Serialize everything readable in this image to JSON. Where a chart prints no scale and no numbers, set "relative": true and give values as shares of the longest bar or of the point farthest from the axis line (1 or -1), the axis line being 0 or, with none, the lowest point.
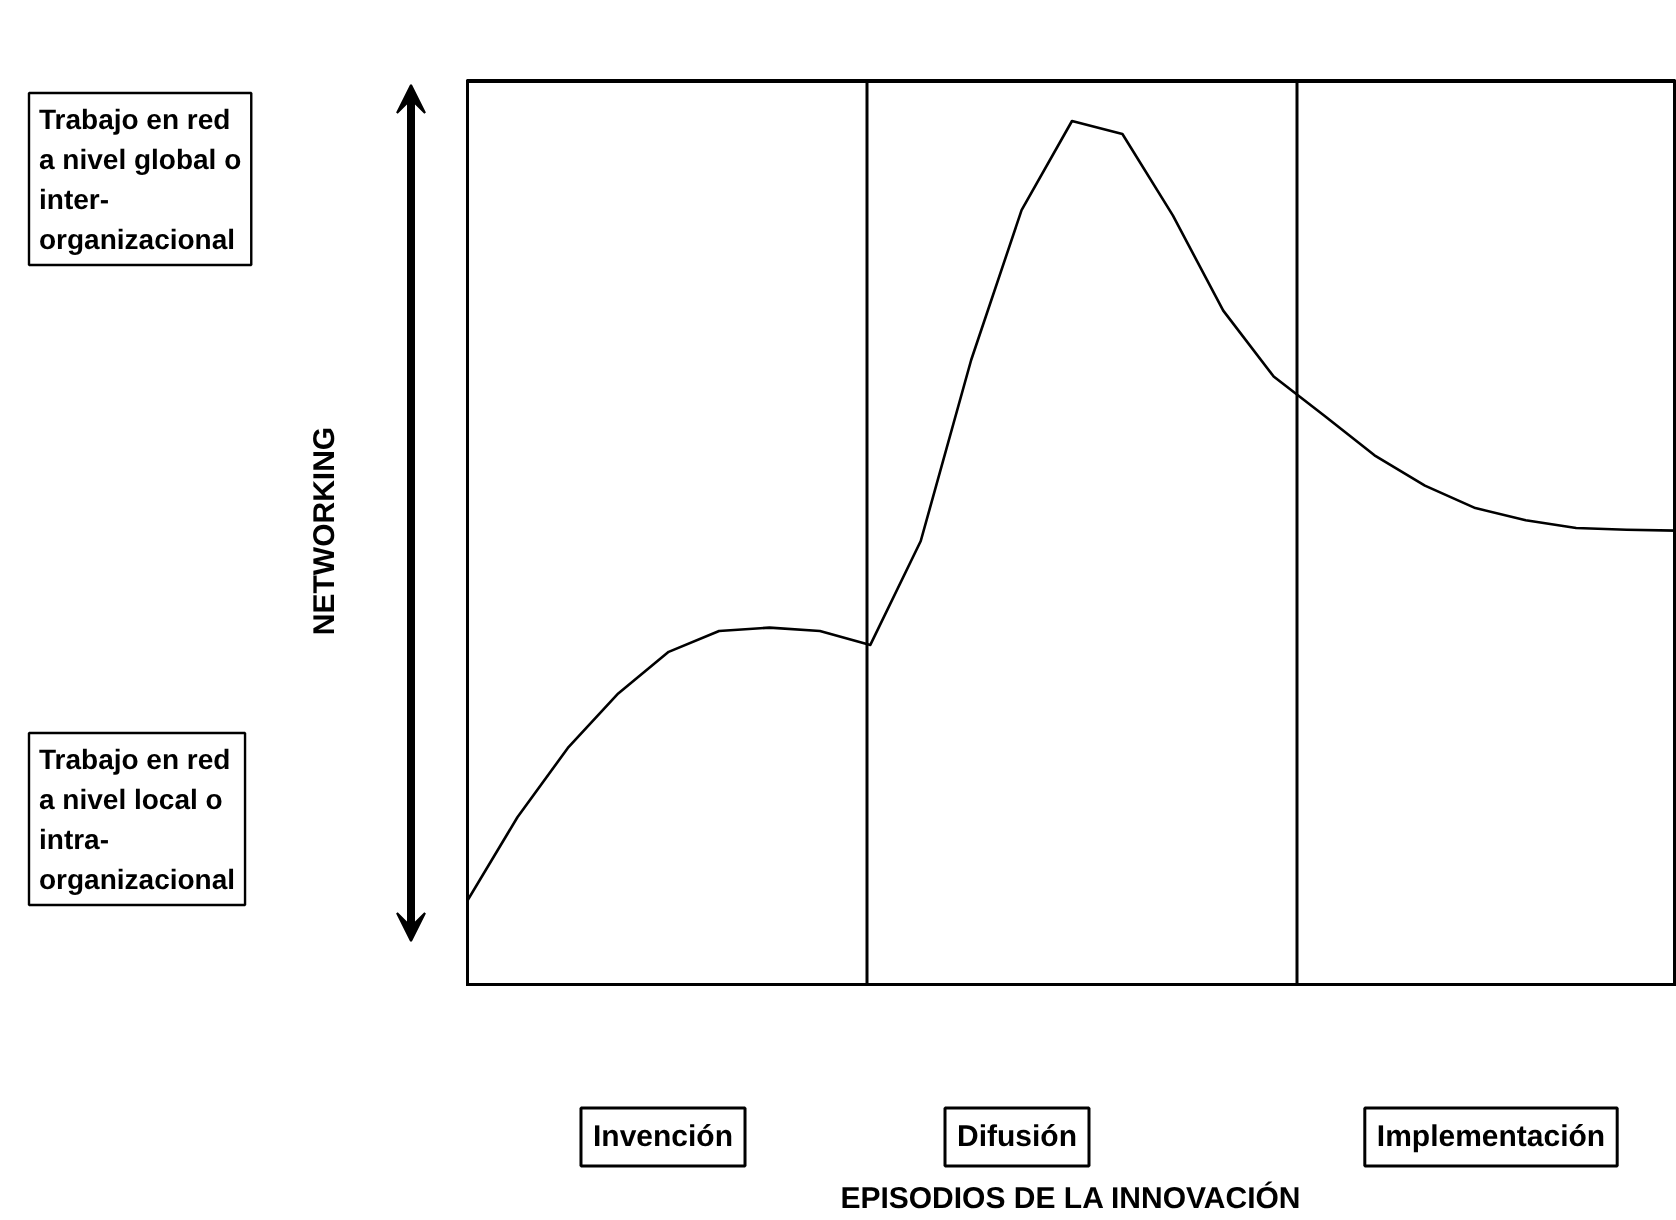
{
  "chart_data": {
    "type": "line",
    "relative": true,
    "ylabel": "NETWORKING",
    "categories": [
      null,
      null,
      null,
      null,
      null,
      null,
      null,
      null,
      null,
      null,
      null,
      null,
      null,
      null,
      null,
      null,
      null,
      null,
      null,
      null,
      null,
      null,
      null,
      null,
      null
    ],
    "grid": false,
    "marker": "none",
    "line_style": "solid",
    "annotations": [
      "Trabajo en red\na nivel global o\ninter-\norganizacional",
      "Trabajo en red\na nivel local o\nintra-\norganizacional",
      "Invención",
      "Difusión",
      "Implementación",
      "EPISODIOS DE LA INNOVACIÓN"
    ],
    "series": [
      {
        "color": "#000000",
        "values": [
          0.099,
          0.196,
          0.276,
          0.339,
          0.387,
          0.411,
          0.415,
          0.411,
          0.395,
          0.515,
          0.724,
          0.897,
          1.0,
          0.985,
          0.891,
          0.781,
          0.705,
          0.66,
          0.614,
          0.579,
          0.553,
          0.539,
          0.53,
          0.528,
          0.527
        ]
      }
    ]
  }
}
